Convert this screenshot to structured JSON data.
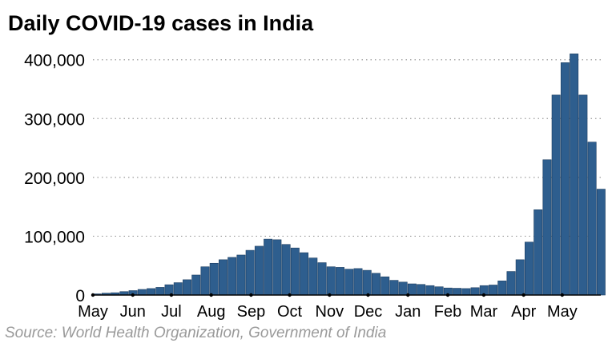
{
  "header": {
    "title": "Daily COVID-19 cases in India"
  },
  "footer": {
    "source": "Source: World Health Organization, Government of India"
  },
  "colors": {
    "bar": "#2e5e8e",
    "bar_stroke": "#1c3d60",
    "grid": "#9a9a9a",
    "axis": "#000000"
  },
  "chart_data": {
    "type": "bar",
    "title": "Daily COVID-19 cases in India",
    "xlabel": "",
    "ylabel": "",
    "ylim": [
      0,
      420000
    ],
    "yticks": [
      0,
      100000,
      200000,
      300000,
      400000
    ],
    "ytick_labels": [
      "0",
      "100,000",
      "200,000",
      "300,000",
      "400,000"
    ],
    "grid": "horizontal dotted",
    "x_start": "2020-05-01",
    "x_end": "2021-05-31",
    "month_labels": [
      "May",
      "Jun",
      "Jul",
      "Aug",
      "Sep",
      "Oct",
      "Nov",
      "Dec",
      "Jan",
      "Feb",
      "Mar",
      "Apr",
      "May"
    ],
    "month_dates": [
      "2020-05-01",
      "2020-06-01",
      "2020-07-01",
      "2020-08-01",
      "2020-09-01",
      "2020-10-01",
      "2020-11-01",
      "2020-12-01",
      "2021-01-01",
      "2021-02-01",
      "2021-03-01",
      "2021-04-01",
      "2021-05-01"
    ],
    "series": [
      {
        "interval_days": 7,
        "points": [
          [
            "2020-05-01",
            2000
          ],
          [
            "2020-05-08",
            3200
          ],
          [
            "2020-05-15",
            3900
          ],
          [
            "2020-05-22",
            5800
          ],
          [
            "2020-05-29",
            7500
          ],
          [
            "2020-06-05",
            9500
          ],
          [
            "2020-06-12",
            11000
          ],
          [
            "2020-06-19",
            13000
          ],
          [
            "2020-06-26",
            17500
          ],
          [
            "2020-07-03",
            21000
          ],
          [
            "2020-07-10",
            26000
          ],
          [
            "2020-07-17",
            34000
          ],
          [
            "2020-07-24",
            48000
          ],
          [
            "2020-07-31",
            54000
          ],
          [
            "2020-08-07",
            60000
          ],
          [
            "2020-08-14",
            64000
          ],
          [
            "2020-08-21",
            68000
          ],
          [
            "2020-08-28",
            76000
          ],
          [
            "2020-09-04",
            83000
          ],
          [
            "2020-09-11",
            95000
          ],
          [
            "2020-09-18",
            94000
          ],
          [
            "2020-09-25",
            86000
          ],
          [
            "2020-10-02",
            80000
          ],
          [
            "2020-10-09",
            72000
          ],
          [
            "2020-10-16",
            63000
          ],
          [
            "2020-10-23",
            55000
          ],
          [
            "2020-10-30",
            48000
          ],
          [
            "2020-11-06",
            47000
          ],
          [
            "2020-11-13",
            44000
          ],
          [
            "2020-11-20",
            45000
          ],
          [
            "2020-11-27",
            42000
          ],
          [
            "2020-12-04",
            37000
          ],
          [
            "2020-12-11",
            31000
          ],
          [
            "2020-12-18",
            25000
          ],
          [
            "2020-12-25",
            22000
          ],
          [
            "2021-01-01",
            19000
          ],
          [
            "2021-01-08",
            18000
          ],
          [
            "2021-01-15",
            16000
          ],
          [
            "2021-01-22",
            14000
          ],
          [
            "2021-01-29",
            12000
          ],
          [
            "2021-02-05",
            11500
          ],
          [
            "2021-02-12",
            11000
          ],
          [
            "2021-02-19",
            12500
          ],
          [
            "2021-02-26",
            16000
          ],
          [
            "2021-03-05",
            17000
          ],
          [
            "2021-03-12",
            24000
          ],
          [
            "2021-03-19",
            40000
          ],
          [
            "2021-03-26",
            60000
          ],
          [
            "2021-04-02",
            90000
          ],
          [
            "2021-04-09",
            145000
          ],
          [
            "2021-04-16",
            230000
          ],
          [
            "2021-04-23",
            340000
          ],
          [
            "2021-04-30",
            395000
          ],
          [
            "2021-05-07",
            410000
          ],
          [
            "2021-05-14",
            340000
          ],
          [
            "2021-05-21",
            260000
          ],
          [
            "2021-05-28",
            180000
          ]
        ]
      }
    ]
  }
}
